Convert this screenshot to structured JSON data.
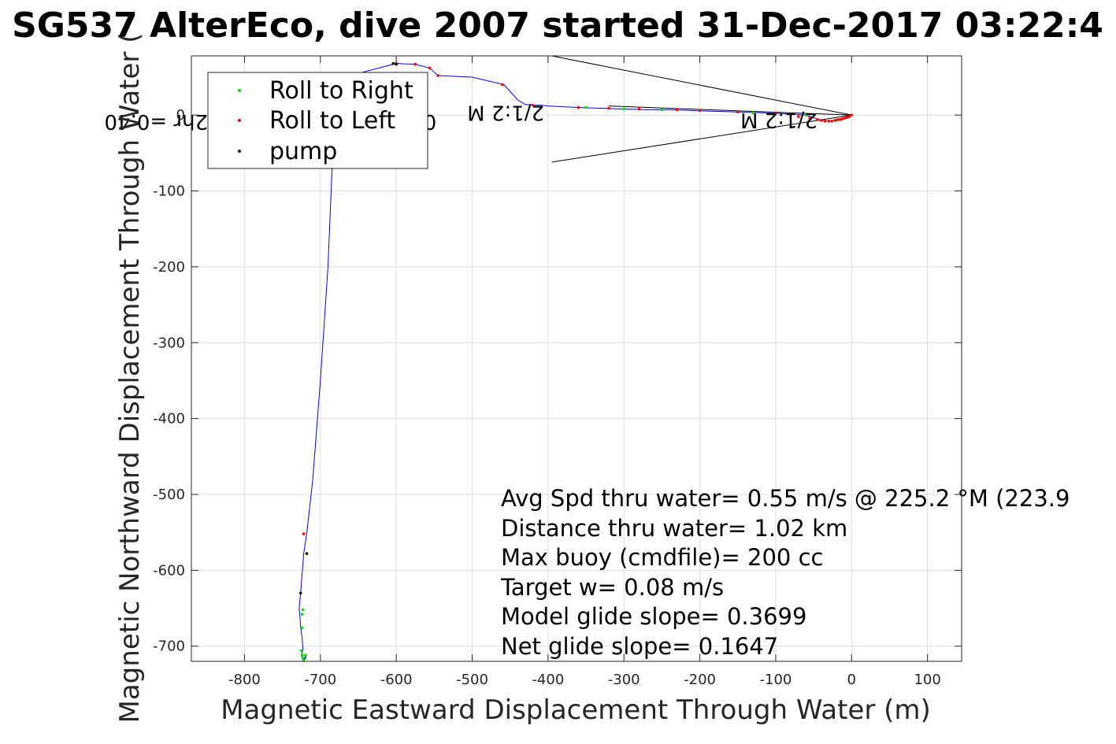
{
  "chart_data": {
    "type": "line",
    "title": "SG537 AlterEco, dive 2007 started 31-Dec-2017 03:22:4",
    "xlabel": "Magnetic Eastward Displacement Through Water (m)",
    "ylabel": "Magnetic Northward Displacement Through Water (",
    "xlim": [
      -870,
      145
    ],
    "ylim": [
      -720,
      78
    ],
    "xticks": [
      -800,
      -700,
      -600,
      -500,
      -400,
      -300,
      -200,
      -100,
      0,
      100
    ],
    "xtick_labels": [
      "-800",
      "-700",
      "-600",
      "-500",
      "-400",
      "-300",
      "-200",
      "-100",
      "0",
      "100"
    ],
    "yticks": [
      0,
      -100,
      -200,
      -300,
      -400,
      -500,
      -600,
      -700
    ],
    "ytick_labels": [
      "0",
      "-100",
      "-200",
      "-300",
      "-400",
      "-500",
      "-600",
      "-700"
    ],
    "grid": true,
    "legend_position": "top-left",
    "legend": [
      {
        "label": "Roll to Right",
        "color": "#00dd00"
      },
      {
        "label": "Roll to Left",
        "color": "#ff0000"
      },
      {
        "label": "pump",
        "color": "#000000"
      }
    ],
    "track": {
      "name": "track",
      "color": "#0000ff",
      "x": [
        0,
        -5,
        -10,
        -15,
        -20,
        -28,
        -40,
        -60,
        -90,
        -120,
        -150,
        -180,
        -210,
        -240,
        -270,
        -300,
        -330,
        -360,
        -380,
        -400,
        -410,
        -420,
        -430,
        -440,
        -458,
        -500,
        -545,
        -556,
        -575,
        -600,
        -650,
        -680,
        -685,
        -690,
        -700,
        -710,
        -718,
        -722,
        -726,
        -728,
        -727,
        -726,
        -724,
        -723,
        -725,
        -724,
        -723,
        -722,
        -720,
        -718,
        -720,
        -722
      ],
      "y": [
        0,
        -4,
        -5,
        -6,
        -7,
        -8,
        -7,
        0,
        2,
        3,
        4,
        5,
        6,
        7,
        7,
        8,
        9,
        10,
        11,
        12,
        13,
        13,
        14,
        20,
        40,
        50,
        52,
        62,
        67,
        68,
        55,
        20,
        -80,
        -200,
        -350,
        -480,
        -552,
        -578,
        -630,
        -650,
        -660,
        -675,
        -690,
        -705,
        -712,
        -715,
        -718,
        -720,
        -716,
        -711,
        -714,
        -719
      ]
    },
    "roll_right_points": {
      "x": [
        -20,
        -60,
        -130,
        -200,
        -250,
        -300,
        -350,
        -723,
        -724,
        -724,
        -725,
        -724,
        -723,
        -722,
        -720
      ],
      "y": [
        -7,
        0,
        3,
        6,
        7,
        8,
        10,
        -652,
        -658,
        -676,
        -706,
        -712,
        -716,
        -719,
        -712
      ]
    },
    "roll_left_points": {
      "x": [
        0,
        -3,
        -6,
        -9,
        -12,
        -15,
        -18,
        -22,
        -26,
        -30,
        -35,
        -40,
        -45,
        -55,
        -70,
        -100,
        -150,
        -200,
        -230,
        -280,
        -320,
        -360,
        -420,
        -460,
        -545,
        -556,
        -575,
        -600,
        -722
      ],
      "y": [
        0,
        -2,
        -3,
        -4,
        -5,
        -6,
        -6,
        -7,
        -8,
        -8,
        -8,
        -7,
        -6,
        -4,
        -2,
        2,
        4,
        6,
        7,
        8,
        9,
        10,
        13,
        40,
        52,
        62,
        67,
        68,
        -552
      ]
    },
    "pump_points": {
      "x": [
        -718,
        -726,
        -604,
        -600
      ],
      "y": [
        -578,
        -630,
        68,
        67
      ]
    },
    "heading_lines": [
      {
        "x": [
          0,
          -395
        ],
        "y": [
          0,
          78
        ]
      },
      {
        "x": [
          0,
          -395
        ],
        "y": [
          0,
          -62
        ]
      },
      {
        "x": [
          0,
          -320
        ],
        "y": [
          0,
          12
        ]
      }
    ],
    "annotations": [
      {
        "text": "0.21629m/s for0.51582hr =0.40",
        "x": -547,
        "y": 0
      },
      {
        "text": "2/1:2 M",
        "x": -405,
        "y": 12
      },
      {
        "text": "2/1:2 M",
        "x": -45,
        "y": 2
      }
    ],
    "stats": [
      "Avg Spd thru water=  0.55 m/s @ 225.2 °M (223.9",
      "Distance thru water=  1.02 km",
      "Max buoy (cmdfile)= 200 cc",
      "Target w= 0.08 m/s",
      "Model glide slope= 0.3699",
      "Net glide slope= 0.1647"
    ]
  }
}
